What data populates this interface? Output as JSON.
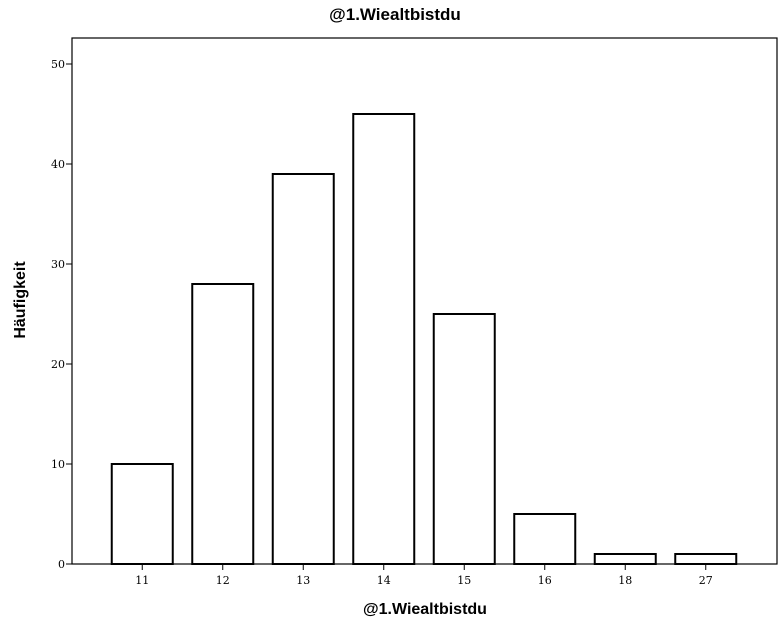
{
  "chart_data": {
    "type": "bar",
    "title": "@1.Wiealtbistdu",
    "xlabel": "@1.Wiealtbistdu",
    "ylabel": "Häufigkeit",
    "categories": [
      "11",
      "12",
      "13",
      "14",
      "15",
      "16",
      "18",
      "27"
    ],
    "values": [
      10,
      28,
      39,
      45,
      25,
      5,
      1,
      1
    ],
    "ylim": [
      0,
      52
    ],
    "yticks": [
      "0",
      "10",
      "20",
      "30",
      "40",
      "50"
    ],
    "grid": false,
    "bar_fill": "#ffffff",
    "bar_stroke": "#000000"
  }
}
